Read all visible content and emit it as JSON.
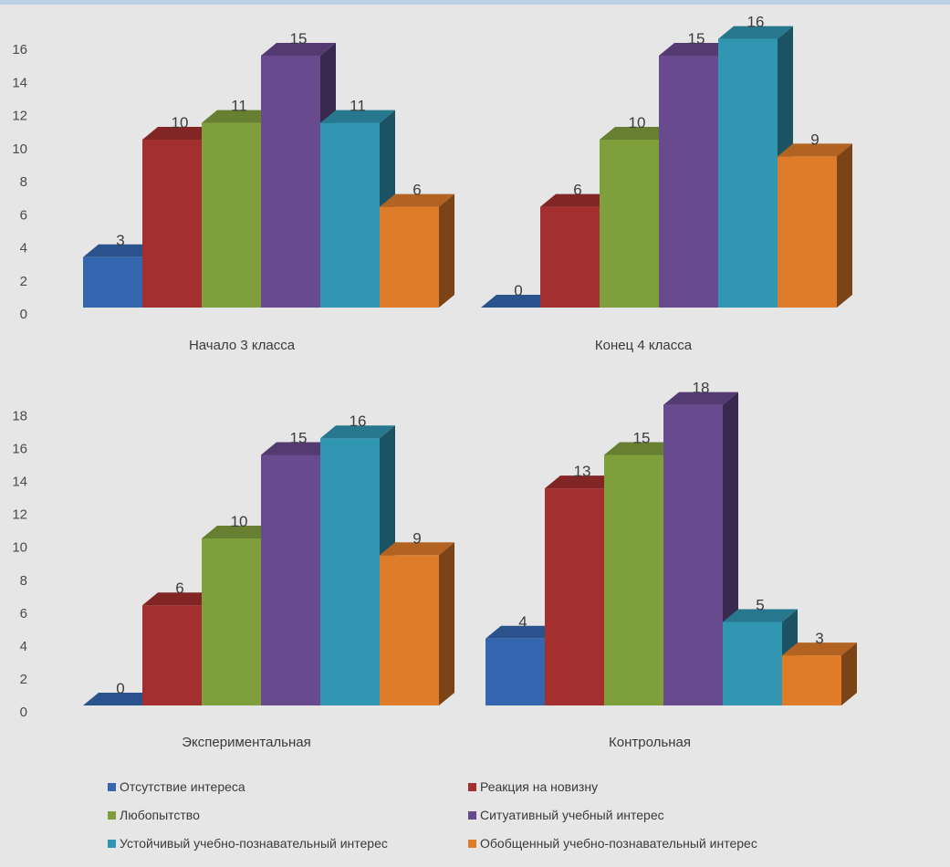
{
  "chart_data": [
    {
      "type": "bar",
      "title": "",
      "xlabel": "Начало 3 класса",
      "ylim": [
        0,
        16
      ],
      "yticks": [
        0,
        2,
        4,
        6,
        8,
        10,
        12,
        14,
        16
      ],
      "values": [
        3,
        10,
        11,
        15,
        11,
        6
      ],
      "data_labels": [
        "3",
        "10",
        "11",
        "15",
        "11",
        "6"
      ]
    },
    {
      "type": "bar",
      "title": "",
      "xlabel": "Конец 4 класса",
      "ylim": [
        0,
        16
      ],
      "yticks": [],
      "values": [
        0,
        6,
        10,
        15,
        16,
        9
      ],
      "data_labels": [
        "0",
        "6",
        "10",
        "15",
        "16",
        "9"
      ]
    },
    {
      "type": "bar",
      "title": "",
      "xlabel": "Экспериментальная",
      "ylim": [
        0,
        18
      ],
      "yticks": [
        0,
        2,
        4,
        6,
        8,
        10,
        12,
        14,
        16,
        18
      ],
      "values": [
        0,
        6,
        10,
        15,
        16,
        9
      ],
      "data_labels": [
        "0",
        "6",
        "10",
        "15",
        "16",
        "9"
      ]
    },
    {
      "type": "bar",
      "title": "",
      "xlabel": "Контрольная",
      "ylim": [
        0,
        18
      ],
      "yticks": [],
      "values": [
        4,
        13,
        15,
        18,
        5,
        3
      ],
      "data_labels": [
        "4",
        "13",
        "15",
        "18",
        "5",
        "3"
      ]
    }
  ],
  "series": [
    {
      "name": "Отсутствие интереса",
      "color": "#3567b0"
    },
    {
      "name": "Реакция на новизну",
      "color": "#a3302e"
    },
    {
      "name": "Любопытство",
      "color": "#7f9f3c"
    },
    {
      "name": "Ситуативный учебный интерес",
      "color": "#684a8f"
    },
    {
      "name": "Устойчивый учебно-познавательный интерес",
      "color": "#3196b2"
    },
    {
      "name": "Обобщенный учебно-познавательный интерес",
      "color": "#de7c2a"
    }
  ],
  "legend_position": "bottom",
  "grid": false
}
